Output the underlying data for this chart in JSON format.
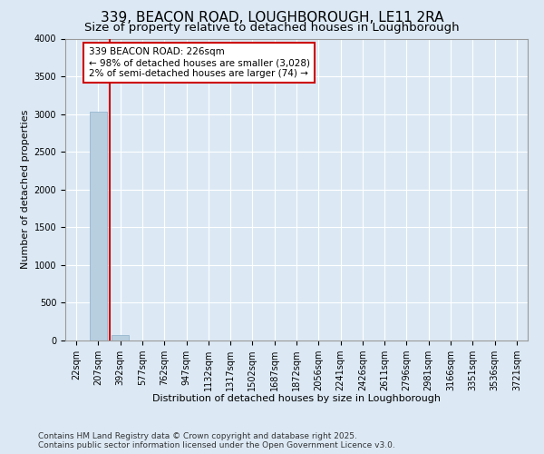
{
  "title": "339, BEACON ROAD, LOUGHBOROUGH, LE11 2RA",
  "subtitle": "Size of property relative to detached houses in Loughborough",
  "xlabel": "Distribution of detached houses by size in Loughborough",
  "ylabel": "Number of detached properties",
  "footer_line1": "Contains HM Land Registry data © Crown copyright and database right 2025.",
  "footer_line2": "Contains public sector information licensed under the Open Government Licence v3.0.",
  "bg_color": "#dce9f5",
  "bar_color": "#b8cfe0",
  "bar_edge_color": "#8aafc8",
  "categories": [
    "22sqm",
    "207sqm",
    "392sqm",
    "577sqm",
    "762sqm",
    "947sqm",
    "1132sqm",
    "1317sqm",
    "1502sqm",
    "1687sqm",
    "1872sqm",
    "2056sqm",
    "2241sqm",
    "2426sqm",
    "2611sqm",
    "2796sqm",
    "2981sqm",
    "3166sqm",
    "3351sqm",
    "3536sqm",
    "3721sqm"
  ],
  "values": [
    0,
    3028,
    74,
    0,
    0,
    0,
    0,
    0,
    0,
    0,
    0,
    0,
    0,
    0,
    0,
    0,
    0,
    0,
    0,
    0,
    0
  ],
  "ylim": [
    0,
    4000
  ],
  "yticks": [
    0,
    500,
    1000,
    1500,
    2000,
    2500,
    3000,
    3500,
    4000
  ],
  "vline_x": 1.5,
  "vline_color": "#cc0000",
  "annotation_text": "339 BEACON ROAD: 226sqm\n← 98% of detached houses are smaller (3,028)\n2% of semi-detached houses are larger (74) →",
  "annotation_box_color": "#ffffff",
  "annotation_edge_color": "#cc0000",
  "grid_color": "#ffffff",
  "title_fontsize": 11,
  "subtitle_fontsize": 9.5,
  "axis_label_fontsize": 8,
  "tick_fontsize": 7,
  "annotation_fontsize": 7.5,
  "footer_fontsize": 6.5
}
